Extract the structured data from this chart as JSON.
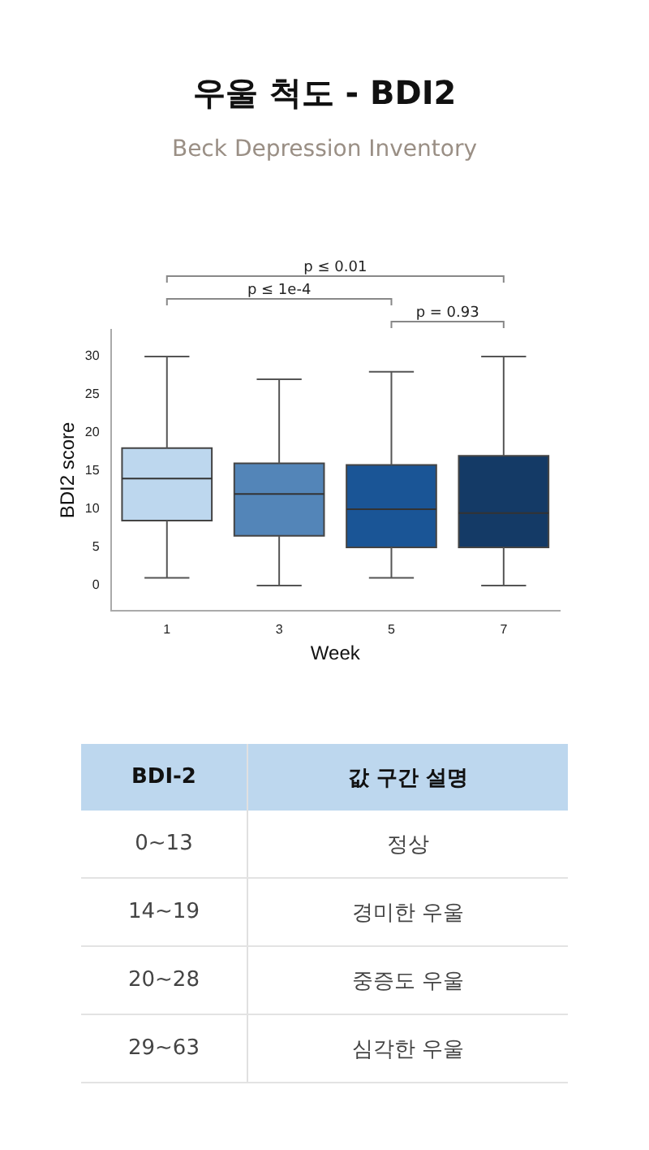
{
  "chart_data": [
    {
      "type": "box",
      "title": "우울 척도 - BDI2",
      "subtitle": "Beck Depression Inventory",
      "xlabel": "Week",
      "ylabel": "BDI2 score",
      "categories": [
        "1",
        "3",
        "5",
        "7"
      ],
      "boxes": [
        {
          "low": 1,
          "q1": 8.5,
          "median": 14,
          "q3": 18,
          "high": 30
        },
        {
          "low": 0,
          "q1": 6.5,
          "median": 12,
          "q3": 16,
          "high": 27
        },
        {
          "low": 1,
          "q1": 5,
          "median": 10,
          "q3": 15.8,
          "high": 28
        },
        {
          "low": 0,
          "q1": 5,
          "median": 9.5,
          "q3": 17,
          "high": 30
        }
      ],
      "colors": [
        "#bdd7ee",
        "#5385b8",
        "#1a5596",
        "#143a66"
      ],
      "ylim": [
        -3.3,
        33.5
      ],
      "yticks": [
        0,
        5,
        10,
        15,
        20,
        25,
        30
      ],
      "grid": false,
      "legend": false,
      "annotations": [
        "p ≤ 0.01",
        "p ≤ 1e-4",
        "p = 0.93"
      ]
    },
    {
      "type": "other",
      "annotations": [
        "BDI-2",
        "값 구간 설명",
        "0~13",
        "정상",
        "14~19",
        "경미한 우울",
        "20~28",
        "중증도 우울",
        "29~63",
        "심각한 우울"
      ]
    }
  ]
}
